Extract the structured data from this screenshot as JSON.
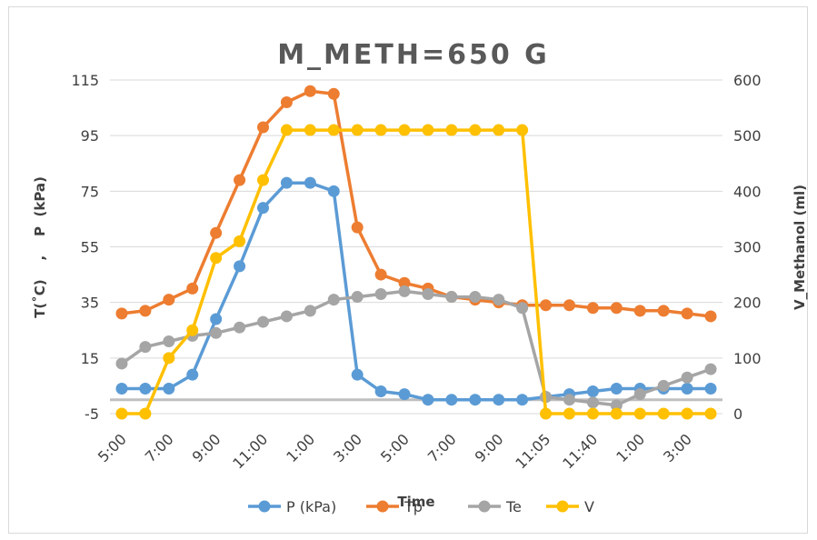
{
  "chart_data": {
    "type": "line",
    "title": "M_METH=650 G",
    "xlabel": "Time",
    "ylabel_left": "T(˚C)    ,    P  (kPa)",
    "ylabel_right": "V_Methanol (ml)",
    "y_left_range": [
      -5,
      115
    ],
    "y_left_ticks": [
      -5,
      15,
      35,
      55,
      75,
      95,
      115
    ],
    "y_right_range": [
      0,
      600
    ],
    "y_right_ticks": [
      0,
      100,
      200,
      300,
      400,
      500,
      600
    ],
    "grid": true,
    "legend_position": "bottom",
    "categories": [
      "5:00",
      "6:00",
      "7:00",
      "8:00",
      "9:00",
      "10:00",
      "11:00",
      "12:00",
      "1:00",
      "2:00",
      "3:00",
      "4:00",
      "5:00",
      "6:00",
      "7:00",
      "8:00",
      "9:00",
      "10:00",
      "11:05",
      "11:20",
      "11:40",
      "12:00",
      "1:00",
      "2:00",
      "3:00",
      "4:00"
    ],
    "tick_labels": [
      "5:00",
      "7:00",
      "9:00",
      "11:00",
      "1:00",
      "3:00",
      "5:00",
      "7:00",
      "9:00",
      "11:05",
      "11:40",
      "1:00",
      "3:00"
    ],
    "series": [
      {
        "name": "P (kPa)",
        "axis": "left",
        "color": "#5b9bd5",
        "values": [
          4,
          4,
          4,
          9,
          29,
          48,
          69,
          78,
          78,
          75,
          9,
          3,
          2,
          0,
          0,
          0,
          0,
          0,
          1,
          2,
          3,
          4,
          4,
          4,
          4,
          4
        ]
      },
      {
        "name": "Tp",
        "axis": "left",
        "color": "#ed7d31",
        "values": [
          31,
          32,
          36,
          40,
          60,
          79,
          98,
          107,
          111,
          110,
          62,
          45,
          42,
          40,
          37,
          36,
          35,
          34,
          34,
          34,
          33,
          33,
          32,
          32,
          31,
          30
        ]
      },
      {
        "name": "Te",
        "axis": "left",
        "color": "#a5a5a5",
        "values": [
          13,
          19,
          21,
          23,
          24,
          26,
          28,
          30,
          32,
          36,
          37,
          38,
          39,
          38,
          37,
          37,
          36,
          33,
          1,
          0,
          -1,
          -2,
          2,
          5,
          8,
          11
        ]
      },
      {
        "name": "V",
        "axis": "right",
        "color": "#ffc000",
        "values": [
          0,
          0,
          100,
          150,
          280,
          310,
          420,
          510,
          510,
          510,
          510,
          510,
          510,
          510,
          510,
          510,
          510,
          510,
          0,
          0,
          0,
          0,
          0,
          0,
          0,
          0
        ]
      }
    ]
  }
}
